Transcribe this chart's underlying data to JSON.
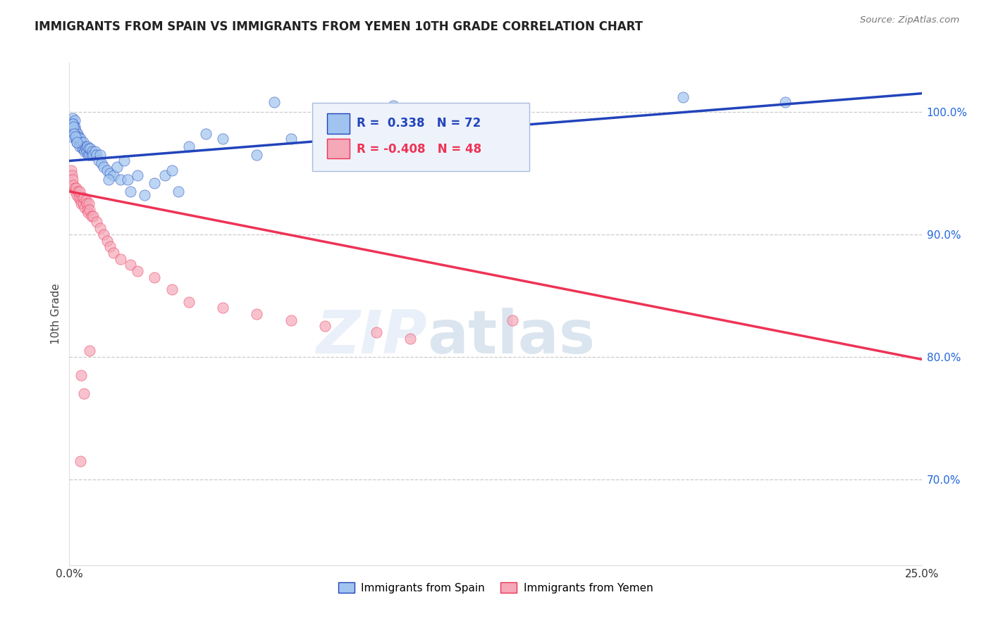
{
  "title": "IMMIGRANTS FROM SPAIN VS IMMIGRANTS FROM YEMEN 10TH GRADE CORRELATION CHART",
  "source": "Source: ZipAtlas.com",
  "ylabel": "10th Grade",
  "yticks": [
    70.0,
    80.0,
    90.0,
    100.0
  ],
  "ytick_labels": [
    "70.0%",
    "80.0%",
    "90.0%",
    "100.0%"
  ],
  "xmin": 0.0,
  "xmax": 25.0,
  "ymin": 63.0,
  "ymax": 104.0,
  "r_spain": 0.338,
  "n_spain": 72,
  "r_yemen": -0.408,
  "n_yemen": 48,
  "color_spain": "#A0C4EF",
  "color_yemen": "#F4A8B8",
  "trendline_spain": "#2244BB",
  "trendline_yemen": "#EE3355",
  "watermark_zip": "ZIP",
  "watermark_atlas": "atlas",
  "spain_x": [
    0.05,
    0.08,
    0.1,
    0.12,
    0.14,
    0.15,
    0.16,
    0.18,
    0.19,
    0.2,
    0.22,
    0.24,
    0.25,
    0.26,
    0.28,
    0.3,
    0.32,
    0.35,
    0.38,
    0.4,
    0.42,
    0.44,
    0.46,
    0.48,
    0.5,
    0.52,
    0.55,
    0.58,
    0.6,
    0.62,
    0.65,
    0.68,
    0.7,
    0.75,
    0.8,
    0.85,
    0.9,
    0.95,
    1.0,
    1.1,
    1.2,
    1.3,
    1.4,
    1.5,
    1.6,
    1.7,
    1.8,
    2.0,
    2.2,
    2.5,
    2.8,
    3.0,
    3.2,
    3.5,
    4.0,
    4.5,
    5.5,
    6.0,
    6.5,
    7.5,
    9.5,
    12.0,
    13.0,
    18.0,
    21.0,
    1.15,
    0.06,
    0.09,
    0.11,
    0.13,
    0.17,
    0.21
  ],
  "spain_y": [
    98.0,
    99.2,
    99.5,
    99.0,
    98.5,
    99.3,
    98.8,
    98.5,
    98.0,
    97.8,
    97.5,
    98.2,
    97.9,
    98.0,
    97.5,
    97.2,
    97.8,
    97.5,
    97.0,
    97.5,
    97.0,
    96.8,
    97.2,
    97.0,
    96.8,
    97.2,
    96.5,
    97.0,
    96.5,
    97.0,
    96.5,
    96.8,
    96.5,
    96.8,
    96.5,
    96.0,
    96.5,
    95.8,
    95.5,
    95.2,
    95.0,
    94.8,
    95.5,
    94.5,
    96.0,
    94.5,
    93.5,
    94.8,
    93.2,
    94.2,
    94.8,
    95.2,
    93.5,
    97.2,
    98.2,
    97.8,
    96.5,
    100.8,
    97.8,
    98.2,
    100.5,
    99.2,
    99.8,
    101.2,
    100.8,
    94.5,
    98.5,
    99.0,
    98.8,
    98.2,
    98.0,
    97.5
  ],
  "yemen_x": [
    0.05,
    0.08,
    0.1,
    0.12,
    0.15,
    0.18,
    0.2,
    0.22,
    0.25,
    0.28,
    0.3,
    0.32,
    0.35,
    0.38,
    0.4,
    0.42,
    0.45,
    0.48,
    0.5,
    0.52,
    0.55,
    0.58,
    0.6,
    0.65,
    0.7,
    0.8,
    0.9,
    1.0,
    1.1,
    1.2,
    1.3,
    1.5,
    1.8,
    2.0,
    2.5,
    3.0,
    3.5,
    4.5,
    5.5,
    6.5,
    7.5,
    9.0,
    10.0,
    13.0,
    0.35,
    0.6,
    0.42,
    0.32
  ],
  "yemen_y": [
    95.2,
    94.8,
    94.5,
    94.0,
    93.8,
    93.5,
    93.8,
    93.2,
    93.5,
    93.0,
    93.5,
    92.8,
    92.5,
    93.0,
    92.5,
    93.0,
    92.2,
    92.8,
    92.5,
    92.0,
    91.8,
    92.5,
    92.0,
    91.5,
    91.5,
    91.0,
    90.5,
    90.0,
    89.5,
    89.0,
    88.5,
    88.0,
    87.5,
    87.0,
    86.5,
    85.5,
    84.5,
    84.0,
    83.5,
    83.0,
    82.5,
    82.0,
    81.5,
    83.0,
    78.5,
    80.5,
    77.0,
    71.5
  ],
  "trendline_spain_x0": 0.0,
  "trendline_spain_y0": 96.0,
  "trendline_spain_x1": 25.0,
  "trendline_spain_y1": 101.5,
  "trendline_yemen_x0": 0.0,
  "trendline_yemen_y0": 93.5,
  "trendline_yemen_x1": 25.0,
  "trendline_yemen_y1": 79.8
}
